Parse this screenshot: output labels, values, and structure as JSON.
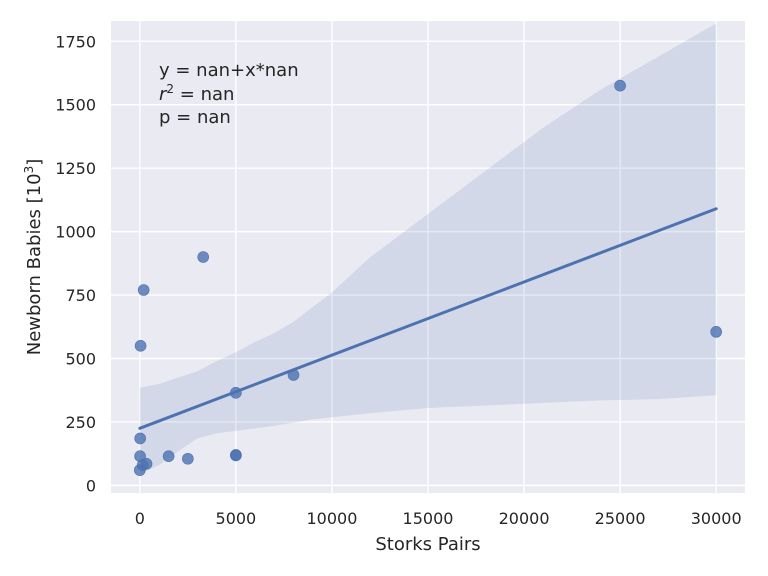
{
  "chart_data": {
    "type": "scatter",
    "xlabel": "Storks Pairs",
    "ylabel": "Newborn Babies [10",
    "ylabel_sup": "3",
    "ylabel_close": "]",
    "xlim": [
      -1500,
      31500
    ],
    "ylim": [
      -30,
      1830
    ],
    "xticks": [
      0,
      5000,
      10000,
      15000,
      20000,
      25000,
      30000
    ],
    "yticks": [
      0,
      250,
      500,
      750,
      1000,
      1250,
      1500,
      1750
    ],
    "grid": true,
    "colors": {
      "background": "#eaeaf2",
      "points": "#4c72b0",
      "line": "#4c72b0",
      "band": "#4c72b0"
    },
    "annotation": {
      "line1": "y = nan+x*nan",
      "r_symbol": "r",
      "r_sup": "2",
      "r_rest": " = nan",
      "line3": "p = nan"
    },
    "points": [
      {
        "x": 0,
        "y": 60
      },
      {
        "x": 15,
        "y": 115
      },
      {
        "x": 20,
        "y": 185
      },
      {
        "x": 40,
        "y": 550
      },
      {
        "x": 150,
        "y": 80
      },
      {
        "x": 200,
        "y": 770
      },
      {
        "x": 350,
        "y": 85
      },
      {
        "x": 1500,
        "y": 115
      },
      {
        "x": 2500,
        "y": 105
      },
      {
        "x": 3300,
        "y": 900
      },
      {
        "x": 5000,
        "y": 120
      },
      {
        "x": 5000,
        "y": 118
      },
      {
        "x": 5000,
        "y": 365
      },
      {
        "x": 8000,
        "y": 435
      },
      {
        "x": 25000,
        "y": 1575
      },
      {
        "x": 30000,
        "y": 605
      }
    ],
    "fit_line": [
      {
        "x": 0,
        "y": 225
      },
      {
        "x": 30000,
        "y": 1090
      }
    ],
    "ci_upper": [
      {
        "x": 0,
        "y": 385
      },
      {
        "x": 1000,
        "y": 400
      },
      {
        "x": 2000,
        "y": 425
      },
      {
        "x": 3000,
        "y": 450
      },
      {
        "x": 4000,
        "y": 490
      },
      {
        "x": 5000,
        "y": 525
      },
      {
        "x": 6000,
        "y": 565
      },
      {
        "x": 7000,
        "y": 600
      },
      {
        "x": 8000,
        "y": 645
      },
      {
        "x": 10000,
        "y": 760
      },
      {
        "x": 12000,
        "y": 900
      },
      {
        "x": 15000,
        "y": 1070
      },
      {
        "x": 18000,
        "y": 1240
      },
      {
        "x": 21000,
        "y": 1410
      },
      {
        "x": 24000,
        "y": 1560
      },
      {
        "x": 27000,
        "y": 1690
      },
      {
        "x": 30000,
        "y": 1820
      }
    ],
    "ci_lower": [
      {
        "x": 0,
        "y": 45
      },
      {
        "x": 1000,
        "y": 80
      },
      {
        "x": 2000,
        "y": 135
      },
      {
        "x": 3000,
        "y": 185
      },
      {
        "x": 4000,
        "y": 205
      },
      {
        "x": 5000,
        "y": 215
      },
      {
        "x": 7000,
        "y": 235
      },
      {
        "x": 9000,
        "y": 260
      },
      {
        "x": 12000,
        "y": 285
      },
      {
        "x": 15000,
        "y": 305
      },
      {
        "x": 18000,
        "y": 315
      },
      {
        "x": 21000,
        "y": 325
      },
      {
        "x": 24000,
        "y": 335
      },
      {
        "x": 27000,
        "y": 340
      },
      {
        "x": 30000,
        "y": 355
      }
    ]
  }
}
